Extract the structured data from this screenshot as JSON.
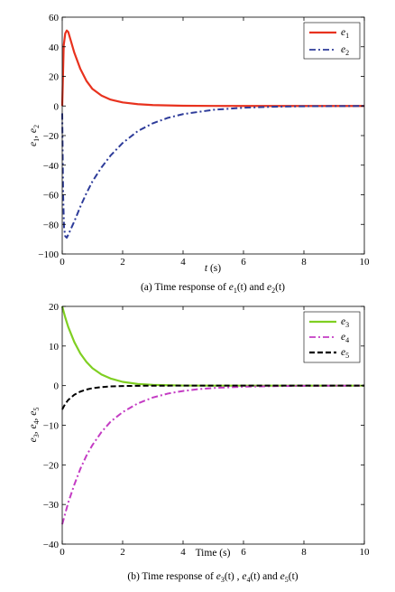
{
  "chart_data": [
    {
      "type": "line",
      "caption": {
        "prefix": "(a) Time response of ",
        "v1": "e",
        "s1": "1",
        "mid": "(t) and ",
        "v2": "e",
        "s2": "2",
        "end": "(t)"
      },
      "xlabel": {
        "var": "t",
        "unit": " (s)"
      },
      "ylabel": {
        "v1": "e",
        "s1": "1",
        "sep": ", ",
        "v2": "e",
        "s2": "2"
      },
      "xlim": [
        0,
        10
      ],
      "ylim": [
        -100,
        60
      ],
      "xticks": [
        "0",
        "2",
        "4",
        "6",
        "8",
        "10"
      ],
      "yticks": [
        "60",
        "40",
        "20",
        "0",
        "−20",
        "−40",
        "−60",
        "−80",
        "−100"
      ],
      "legend_position": "top-right",
      "series": [
        {
          "name": "e",
          "sub": "1",
          "color": "#e8321e",
          "style": "solid",
          "x": [
            0,
            0.05,
            0.1,
            0.15,
            0.2,
            0.3,
            0.4,
            0.6,
            0.8,
            1.0,
            1.3,
            1.6,
            2.0,
            2.5,
            3.0,
            4.0,
            5.0,
            6.0,
            8.0,
            10.0
          ],
          "y": [
            0,
            41,
            49,
            51,
            50,
            43,
            36,
            25,
            17,
            11.5,
            7,
            4.3,
            2.4,
            1.2,
            0.6,
            0.15,
            0.05,
            0,
            0,
            0
          ]
        },
        {
          "name": "e",
          "sub": "2",
          "color": "#2e3c9a",
          "style": "dashdot",
          "x": [
            0,
            0.03,
            0.06,
            0.1,
            0.15,
            0.2,
            0.4,
            0.6,
            0.8,
            1.0,
            1.3,
            1.6,
            2.0,
            2.5,
            3.0,
            3.5,
            4.0,
            5.0,
            6.0,
            7.0,
            8.0,
            10.0
          ],
          "y": [
            -5,
            -60,
            -82,
            -88,
            -89,
            -87,
            -78,
            -68,
            -59,
            -51,
            -41.5,
            -33.5,
            -25,
            -17,
            -11.7,
            -8,
            -5.5,
            -2.6,
            -1.2,
            -0.5,
            -0.2,
            0
          ]
        }
      ]
    },
    {
      "type": "line",
      "caption": {
        "prefix": "(b) Time response of ",
        "v1": "e",
        "s1": "3",
        "mid1": "(t) , ",
        "v2": "e",
        "s2": "4",
        "mid2": "(t) and ",
        "v3": "e",
        "s3": "5",
        "end": "(t)"
      },
      "xlabel": {
        "text": "Time (s)"
      },
      "ylabel": {
        "v1": "e",
        "s1": "3",
        "sep1": ", ",
        "v2": "e",
        "s2": "4",
        "sep2": ", ",
        "v3": "e",
        "s3": "5"
      },
      "xlim": [
        0,
        10
      ],
      "ylim": [
        -40,
        20
      ],
      "xticks": [
        "0",
        "2",
        "4",
        "6",
        "8",
        "10"
      ],
      "yticks": [
        "20",
        "10",
        "0",
        "−10",
        "−20",
        "−30",
        "−40"
      ],
      "legend_position": "top-right",
      "series": [
        {
          "name": "e",
          "sub": "3",
          "color": "#7fcf22",
          "style": "solid",
          "x": [
            0,
            0.1,
            0.2,
            0.4,
            0.6,
            0.8,
            1.0,
            1.3,
            1.6,
            2.0,
            2.5,
            3.0,
            4.0,
            5.0,
            6.0,
            10.0
          ],
          "y": [
            20,
            17.2,
            14.8,
            11,
            8.1,
            6,
            4.4,
            2.8,
            1.8,
            0.95,
            0.42,
            0.18,
            0.03,
            0,
            0,
            0
          ]
        },
        {
          "name": "e",
          "sub": "4",
          "color": "#c43cc4",
          "style": "dashdot",
          "x": [
            0,
            0.2,
            0.4,
            0.6,
            0.8,
            1.0,
            1.3,
            1.6,
            2.0,
            2.5,
            3.0,
            3.5,
            4.0,
            4.5,
            5.0,
            6.0,
            7.0,
            8.0,
            10.0
          ],
          "y": [
            -35,
            -29.5,
            -25,
            -21,
            -17.7,
            -15,
            -11.7,
            -9.1,
            -6.7,
            -4.5,
            -3.0,
            -2.0,
            -1.35,
            -0.9,
            -0.6,
            -0.27,
            -0.12,
            -0.05,
            0
          ]
        },
        {
          "name": "e",
          "sub": "5",
          "color": "#000000",
          "style": "dashed",
          "x": [
            0,
            0.1,
            0.2,
            0.4,
            0.6,
            0.8,
            1.0,
            1.3,
            1.6,
            2.0,
            2.5,
            3.0,
            4.0,
            10.0
          ],
          "y": [
            -6,
            -4.6,
            -3.6,
            -2.3,
            -1.5,
            -1.0,
            -0.65,
            -0.37,
            -0.2,
            -0.1,
            -0.04,
            -0.01,
            0,
            0
          ]
        }
      ]
    }
  ]
}
